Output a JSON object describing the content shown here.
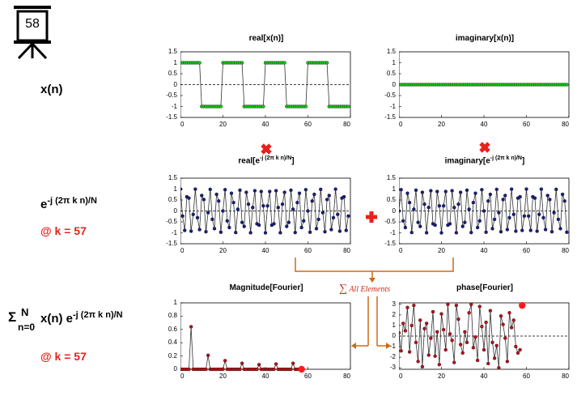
{
  "easel": {
    "number": "58"
  },
  "left_labels": {
    "row1": "x(n)",
    "row2_base": "e",
    "row2_sup": "-j (2π k n)/N",
    "row2_k": "@ k = 57",
    "row3_sigma": "Σ",
    "row3_sup": "N",
    "row3_sub": "n=0",
    "row3_body": "x(n) e",
    "row3_exp": "-j (2π k n)/N",
    "row3_k": "@ k = 57"
  },
  "annotations": {
    "sum_label": "All Elements",
    "sum_symbol": "∑"
  },
  "colors": {
    "green": "#19c21a",
    "navy": "#1b1f7a",
    "darkred": "#b3141b",
    "bright_red": "#ff1a1a",
    "orange": "#cc6a16",
    "accent_red": "#e8211c"
  },
  "chart_data": [
    {
      "id": "real_x",
      "type": "line",
      "title": "real[x(n)]",
      "title_sub": "",
      "title_end": "",
      "xlim": [
        0,
        80
      ],
      "ylim": [
        -1.5,
        1.5
      ],
      "xticks": [
        0,
        20,
        40,
        60,
        80
      ],
      "yticks": [
        "1.5",
        "1",
        "0.5",
        "0",
        "-0.5",
        "-1",
        "-1.5"
      ],
      "series": [
        {
          "marker_color": "#19c21a",
          "x_range": [
            0,
            79
          ],
          "y": [
            1,
            1,
            1,
            1,
            1,
            1,
            1,
            1,
            1,
            1,
            -1,
            -1,
            -1,
            -1,
            -1,
            -1,
            -1,
            -1,
            -1,
            -1,
            1,
            1,
            1,
            1,
            1,
            1,
            1,
            1,
            1,
            1,
            -1,
            -1,
            -1,
            -1,
            -1,
            -1,
            -1,
            -1,
            -1,
            -1,
            1,
            1,
            1,
            1,
            1,
            1,
            1,
            1,
            1,
            1,
            -1,
            -1,
            -1,
            -1,
            -1,
            -1,
            -1,
            -1,
            -1,
            -1,
            1,
            1,
            1,
            1,
            1,
            1,
            1,
            1,
            1,
            1,
            -1,
            -1,
            -1,
            -1,
            -1,
            -1,
            -1,
            -1,
            -1,
            -1
          ]
        }
      ]
    },
    {
      "id": "imag_x",
      "type": "line",
      "title": "imaginary[x(n)]",
      "title_sub": "",
      "title_end": "",
      "xlim": [
        0,
        80
      ],
      "ylim": [
        -1.5,
        1.5
      ],
      "xticks": [
        0,
        20,
        40,
        60,
        80
      ],
      "yticks": [
        "1.5",
        "1",
        "0.5",
        "0",
        "-0.5",
        "-1",
        "-1.5"
      ],
      "series": [
        {
          "marker_color": "#19c21a",
          "x_range": [
            0,
            79
          ],
          "constant": 0
        }
      ]
    },
    {
      "id": "real_e",
      "type": "line",
      "title": "real[e",
      "title_sub": "-j (2π k n)/N",
      "title_end": "]",
      "xlim": [
        0,
        80
      ],
      "ylim": [
        -1.5,
        1.5
      ],
      "xticks": [
        0,
        20,
        40,
        60,
        80
      ],
      "yticks": [
        "1.5",
        "1",
        "0.5",
        "0",
        "-0.5",
        "-1",
        "-1.5"
      ],
      "series": [
        {
          "marker_color": "#1b1f7a",
          "x_range": [
            0,
            79
          ],
          "function": "cos",
          "k": 57,
          "N": 80
        }
      ]
    },
    {
      "id": "imag_e",
      "type": "line",
      "title": "imaginary[e",
      "title_sub": "-j (2π k n)/N",
      "title_end": "]",
      "xlim": [
        0,
        80
      ],
      "ylim": [
        -1.5,
        1.5
      ],
      "xticks": [
        0,
        20,
        40,
        60,
        80
      ],
      "yticks": [
        "1.5",
        "1",
        "0.5",
        "0",
        "-0.5",
        "-1",
        "-1.5"
      ],
      "series": [
        {
          "marker_color": "#1b1f7a",
          "x_range": [
            0,
            79
          ],
          "function": "-sin",
          "k": 57,
          "N": 80
        }
      ]
    },
    {
      "id": "mag",
      "type": "line",
      "title": "Magnitude[Fourier]",
      "title_sub": "",
      "title_end": "",
      "xlim": [
        0,
        80
      ],
      "ylim": [
        0,
        1
      ],
      "xticks": [
        0,
        20,
        40,
        60,
        80
      ],
      "yticks": [
        "1",
        "0.8",
        "0.6",
        "0.4",
        "0.2",
        "0"
      ],
      "series": [
        {
          "marker_color": "#b3141b",
          "x_range": [
            0,
            57
          ],
          "y": [
            0,
            0,
            0,
            0,
            0,
            0.64,
            0,
            0,
            0,
            0,
            0,
            0,
            0,
            0.21,
            0,
            0,
            0,
            0,
            0,
            0,
            0,
            0.13,
            0,
            0,
            0,
            0,
            0,
            0,
            0,
            0.09,
            0,
            0,
            0,
            0,
            0,
            0,
            0,
            0.07,
            0,
            0,
            0,
            0,
            0,
            0,
            0,
            0.08,
            0,
            0,
            0,
            0,
            0,
            0,
            0,
            0.09,
            0,
            0,
            0,
            0
          ]
        }
      ],
      "highlight": {
        "x": 57,
        "y": 0
      }
    },
    {
      "id": "phase",
      "type": "line",
      "title": "phase[Fourier]",
      "title_sub": "",
      "title_end": "",
      "xlim": [
        0,
        80
      ],
      "ylim": [
        -3.14,
        3.14
      ],
      "xticks": [
        0,
        20,
        40,
        60,
        80
      ],
      "yticks": [
        "3",
        "2",
        "1",
        "0",
        "-1",
        "-2",
        "-3"
      ],
      "series": [
        {
          "marker_color": "#b3141b",
          "x_range": [
            0,
            57
          ],
          "y": [
            0.3,
            -1.4,
            1.2,
            0.5,
            2.7,
            -1.5,
            1.0,
            2.9,
            -0.6,
            -2.4,
            1.5,
            -2.9,
            0.7,
            1.2,
            -1.8,
            -0.2,
            2.3,
            -1.9,
            0.4,
            -2.7,
            2.1,
            0.6,
            -1.3,
            3.0,
            0.2,
            -0.4,
            -2.5,
            2.9,
            1.6,
            -0.8,
            -1.6,
            0.4,
            -0.6,
            2.2,
            3.0,
            -1.1,
            -0.1,
            -2.3,
            2.8,
            0.9,
            -1.3,
            1.3,
            -2.6,
            2.4,
            -0.6,
            -2.1,
            -0.9,
            -3.0,
            1.9,
            1.1,
            -0.2,
            -2.4,
            2.2,
            0.8,
            1.5,
            -1.0,
            -1.6,
            -1.3
          ]
        }
      ],
      "highlight": {
        "x": 58,
        "y": 2.9
      }
    }
  ]
}
